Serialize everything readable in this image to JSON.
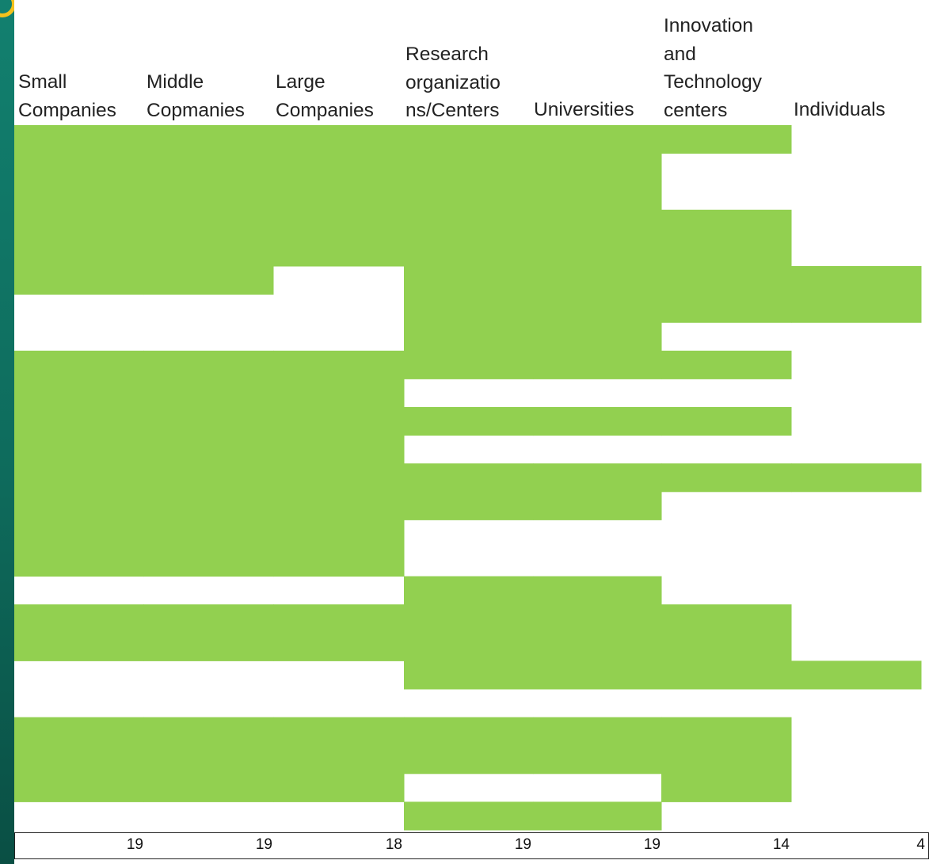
{
  "chart_data": {
    "type": "heatmap",
    "columns": [
      {
        "header": "Small\nCompanies",
        "total": "19"
      },
      {
        "header": "Middle\nCopmanies",
        "total": "19"
      },
      {
        "header": "Large\nCompanies",
        "total": "18"
      },
      {
        "header": "Research\norganizatio\nns/Centers",
        "total": "19"
      },
      {
        "header": "Universities",
        "total": "19"
      },
      {
        "header": "Innovation\nand\nTechnology\ncenters",
        "total": "14"
      },
      {
        "header": "Individuals",
        "total": "4"
      }
    ],
    "rows": 25,
    "filled_color": "#92d050",
    "matrix": [
      [
        1,
        1,
        1,
        1,
        1,
        1,
        0
      ],
      [
        1,
        1,
        1,
        1,
        1,
        0,
        0
      ],
      [
        1,
        1,
        1,
        1,
        1,
        0,
        0
      ],
      [
        1,
        1,
        1,
        1,
        1,
        1,
        0
      ],
      [
        1,
        1,
        1,
        1,
        1,
        1,
        0
      ],
      [
        1,
        1,
        0,
        1,
        1,
        1,
        1
      ],
      [
        0,
        0,
        0,
        1,
        1,
        1,
        1
      ],
      [
        0,
        0,
        0,
        1,
        1,
        0,
        0
      ],
      [
        1,
        1,
        1,
        1,
        1,
        1,
        0
      ],
      [
        1,
        1,
        1,
        0,
        0,
        0,
        0
      ],
      [
        1,
        1,
        1,
        1,
        1,
        1,
        0
      ],
      [
        1,
        1,
        1,
        0,
        0,
        0,
        0
      ],
      [
        1,
        1,
        1,
        1,
        1,
        1,
        1
      ],
      [
        1,
        1,
        1,
        1,
        1,
        0,
        0
      ],
      [
        1,
        1,
        1,
        0,
        0,
        0,
        0
      ],
      [
        1,
        1,
        1,
        0,
        0,
        0,
        0
      ],
      [
        0,
        0,
        0,
        1,
        1,
        0,
        0
      ],
      [
        1,
        1,
        1,
        1,
        1,
        1,
        0
      ],
      [
        1,
        1,
        1,
        1,
        1,
        1,
        0
      ],
      [
        0,
        0,
        0,
        1,
        1,
        1,
        1
      ],
      [
        0,
        0,
        0,
        0,
        0,
        0,
        0
      ],
      [
        1,
        1,
        1,
        1,
        1,
        1,
        0
      ],
      [
        1,
        1,
        1,
        1,
        1,
        1,
        0
      ],
      [
        1,
        1,
        1,
        0,
        0,
        1,
        0
      ],
      [
        0,
        0,
        0,
        1,
        1,
        0,
        0
      ]
    ]
  }
}
